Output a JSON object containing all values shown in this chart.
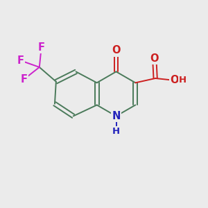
{
  "bg_color": "#ebebeb",
  "bond_color": "#4a7a5a",
  "atom_colors": {
    "N": "#2222bb",
    "O": "#cc2020",
    "F": "#cc22cc",
    "C": "#4a7a5a"
  },
  "font_size": 10.5,
  "lw": 1.4
}
